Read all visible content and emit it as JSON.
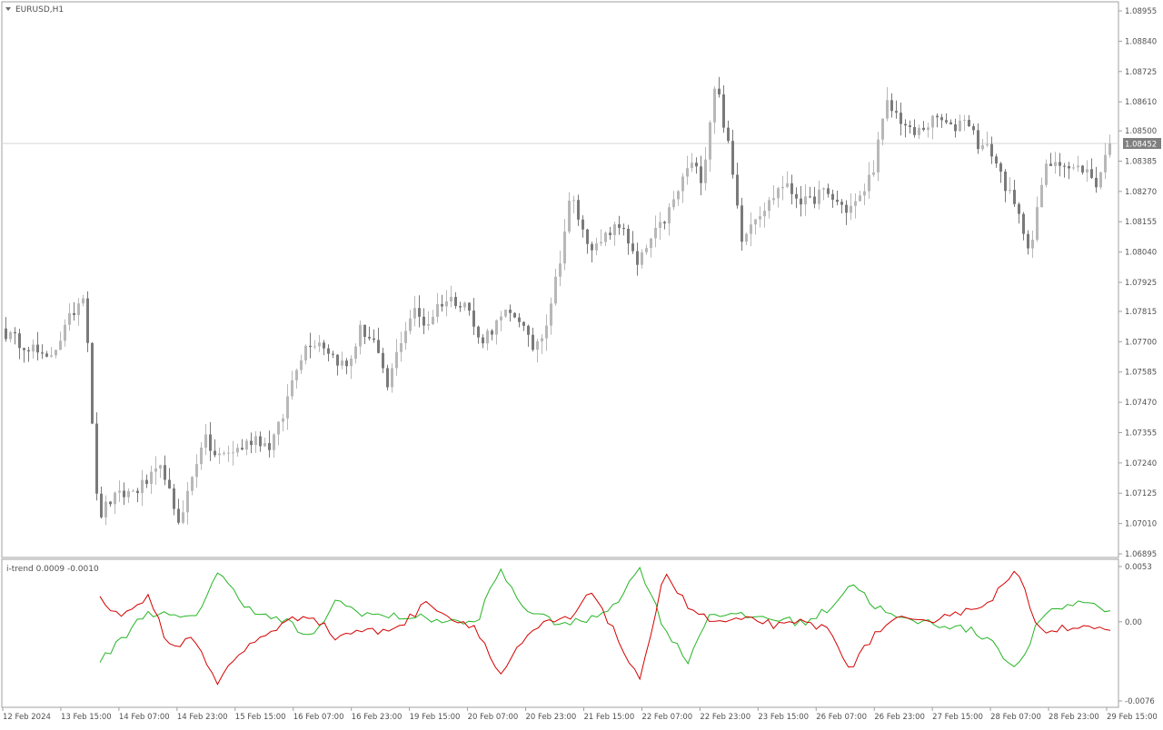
{
  "window": {
    "symbol_title": "EURUSD,H1",
    "indicator_title": "i-trend 0.0009 -0.0010"
  },
  "colors": {
    "background": "#ffffff",
    "frame": "#a0a0a0",
    "text": "#505050",
    "bull_candle": "#b8b8b8",
    "bear_candle": "#7a7a7a",
    "bid_line": "#d6d6d6",
    "price_badge_bg": "#7f7f7f",
    "price_badge_text": "#ffffff",
    "line_green": "#26b526",
    "line_red": "#d40000"
  },
  "price_axis": {
    "min": 1.06895,
    "max": 1.08955,
    "ticks": [
      "1.08955",
      "1.08840",
      "1.08725",
      "1.08610",
      "1.08500",
      "1.08385",
      "1.08270",
      "1.08155",
      "1.08040",
      "1.07925",
      "1.07815",
      "1.07700",
      "1.07585",
      "1.07470",
      "1.07355",
      "1.07240",
      "1.07125",
      "1.07010",
      "1.06895"
    ],
    "current_price": "1.08452"
  },
  "indicator_axis": {
    "min": -0.0076,
    "max": 0.0053,
    "ticks": [
      "0.0053",
      "0.00",
      "-0.0076"
    ]
  },
  "time_axis": {
    "labels": [
      "12 Feb 2024",
      "13 Feb 15:00",
      "14 Feb 07:00",
      "14 Feb 23:00",
      "15 Feb 15:00",
      "16 Feb 07:00",
      "16 Feb 23:00",
      "19 Feb 15:00",
      "20 Feb 07:00",
      "20 Feb 23:00",
      "21 Feb 15:00",
      "22 Feb 07:00",
      "22 Feb 23:00",
      "23 Feb 15:00",
      "26 Feb 07:00",
      "26 Feb 23:00",
      "27 Feb 15:00",
      "28 Feb 07:00",
      "28 Feb 23:00",
      "29 Feb 15:00"
    ]
  },
  "chart_data": [
    {
      "type": "candlestick",
      "title": "EURUSD,H1",
      "ylim": [
        1.06895,
        1.08955
      ],
      "x_axis_labels": [
        "12 Feb 2024",
        "13 Feb 15:00",
        "14 Feb 07:00",
        "14 Feb 23:00",
        "15 Feb 15:00",
        "16 Feb 07:00",
        "16 Feb 23:00",
        "19 Feb 15:00",
        "20 Feb 07:00",
        "20 Feb 23:00",
        "21 Feb 15:00",
        "22 Feb 07:00",
        "22 Feb 23:00",
        "23 Feb 15:00",
        "26 Feb 07:00",
        "26 Feb 23:00",
        "27 Feb 15:00",
        "28 Feb 07:00",
        "28 Feb 23:00",
        "29 Feb 15:00"
      ],
      "close_anchors": [
        1.0773,
        1.077,
        1.0768,
        1.0762,
        1.077,
        1.078,
        1.079,
        1.0703,
        1.071,
        1.0712,
        1.0714,
        1.0718,
        1.0722,
        1.07,
        1.0715,
        1.0734,
        1.0726,
        1.0728,
        1.073,
        1.0734,
        1.073,
        1.074,
        1.076,
        1.077,
        1.077,
        1.0764,
        1.076,
        1.0775,
        1.077,
        1.0752,
        1.077,
        1.0782,
        1.0776,
        1.0785,
        1.0786,
        1.0785,
        1.077,
        1.0775,
        1.078,
        1.078,
        1.0767,
        1.0775,
        1.0797,
        1.0826,
        1.081,
        1.0805,
        1.0812,
        1.0814,
        1.0798,
        1.0808,
        1.0815,
        1.0825,
        1.0838,
        1.0832,
        1.087,
        1.0843,
        1.081,
        1.0818,
        1.0822,
        1.083,
        1.0826,
        1.0822,
        1.0827,
        1.0824,
        1.082,
        1.0824,
        1.0836,
        1.086,
        1.0855,
        1.0848,
        1.0852,
        1.0855,
        1.085,
        1.0856,
        1.0845,
        1.0842,
        1.083,
        1.0818,
        1.0805,
        1.0835,
        1.084,
        1.0835,
        1.0836,
        1.083,
        1.0843
      ],
      "last_price": 1.08452
    },
    {
      "type": "line",
      "title": "i-trend 0.0009 -0.0010",
      "ylim": [
        -0.0076,
        0.0053
      ],
      "series": [
        {
          "color": "#26b526",
          "anchors": [
            -0.0038,
            -0.0015,
            0.001,
            0.0005,
            0.0002,
            0.0048,
            0.002,
            0.0005,
            0.0,
            -0.0018,
            0.002,
            0.001,
            0.0005,
            0.0005,
            0.0003,
            0.0,
            -0.0002,
            0.005,
            0.0015,
            0.0002,
            -0.0002,
            0.0003,
            0.002,
            0.0052,
            -0.0005,
            -0.0038,
            0.001,
            0.0005,
            0.0005,
            0.0002,
            -0.0001,
            0.0012,
            0.0038,
            0.0015,
            0.0002,
            0.0,
            -0.0003,
            -0.0008,
            -0.0018,
            -0.0048,
            0.0002,
            0.0015,
            0.002,
            0.001
          ]
        },
        {
          "color": "#d40000",
          "anchors": [
            0.0022,
            0.0005,
            0.0025,
            -0.0025,
            -0.0015,
            -0.0058,
            -0.003,
            -0.0012,
            0.0,
            0.0008,
            -0.0015,
            -0.0008,
            -0.001,
            0.0,
            0.002,
            0.0002,
            -0.0004,
            -0.0052,
            -0.002,
            0.0,
            0.0002,
            0.003,
            -0.0015,
            -0.006,
            0.005,
            0.0015,
            0.0,
            0.0,
            0.0002,
            -0.0005,
            0.0,
            -0.0008,
            -0.0045,
            -0.001,
            0.0002,
            -0.0002,
            0.0008,
            0.001,
            0.0024,
            0.0048,
            -0.0008,
            -0.0005,
            -0.0003,
            -0.0012
          ]
        }
      ]
    }
  ]
}
